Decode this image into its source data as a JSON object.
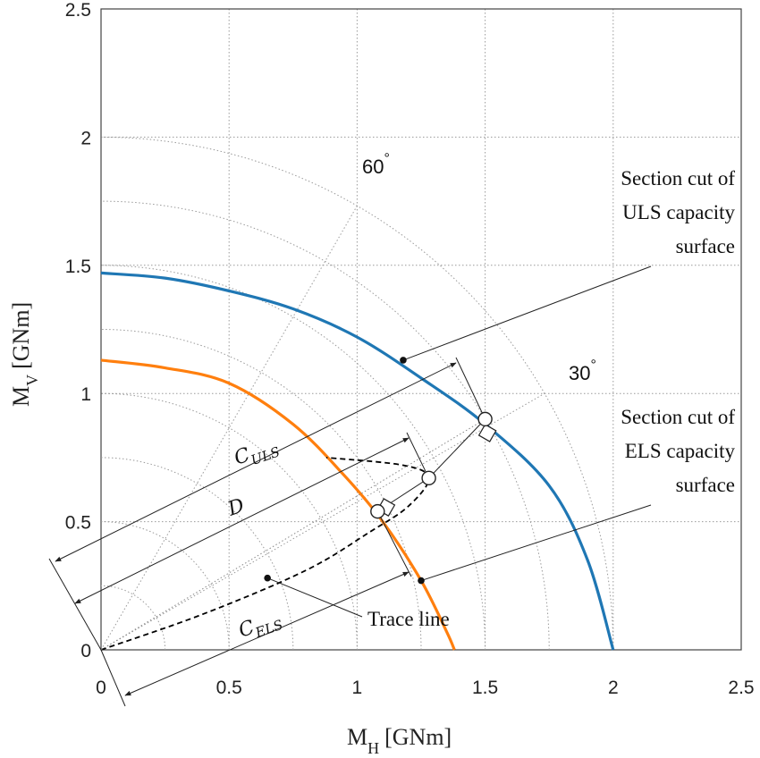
{
  "chart_data": {
    "type": "line",
    "xlabel": "M",
    "xlabel_sub": "H",
    "xlabel_unit": "[GNm]",
    "ylabel": "M",
    "ylabel_sub": "V",
    "ylabel_unit": "[GNm]",
    "xlim": [
      0,
      2.5
    ],
    "ylim": [
      0,
      2.5
    ],
    "xticks": [
      0,
      0.5,
      1,
      1.5,
      2,
      2.5
    ],
    "yticks": [
      0,
      0.5,
      1,
      1.5,
      2,
      2.5
    ],
    "xtick_labels": [
      "0",
      "0.5",
      "1",
      "1.5",
      "2",
      "2.5"
    ],
    "ytick_labels": [
      "0",
      "0.5",
      "1",
      "1.5",
      "2",
      "2.5"
    ],
    "grid": true,
    "polar_grid": {
      "radii": [
        0.25,
        0.5,
        0.75,
        1.0,
        1.25,
        1.5,
        1.75,
        2.0
      ],
      "angles_deg": [
        30,
        60
      ],
      "angle_labels": [
        {
          "text": "60",
          "deg": "°",
          "x": 1.1,
          "y": 1.88
        },
        {
          "text": "30",
          "deg": "°",
          "x": 1.82,
          "y": 1.03
        }
      ]
    },
    "series": [
      {
        "name": "ULS",
        "color": "#1f77b4",
        "x": [
          0,
          0.25,
          0.5,
          0.75,
          1.0,
          1.25,
          1.5,
          1.75,
          1.9,
          2.0
        ],
        "y": [
          1.47,
          1.45,
          1.4,
          1.33,
          1.22,
          1.06,
          0.88,
          0.64,
          0.35,
          0.0
        ]
      },
      {
        "name": "ELS",
        "color": "#ff7f0e",
        "x": [
          0,
          0.25,
          0.5,
          0.75,
          0.95,
          1.1,
          1.25,
          1.35,
          1.38
        ],
        "y": [
          1.13,
          1.1,
          1.04,
          0.88,
          0.68,
          0.5,
          0.27,
          0.07,
          0.0
        ]
      },
      {
        "name": "Trace line",
        "color": "#000000",
        "style": "dashed",
        "x": [
          0,
          0.4,
          0.8,
          1.05,
          1.2,
          1.28,
          1.18,
          0.88
        ],
        "y": [
          0,
          0.14,
          0.31,
          0.46,
          0.56,
          0.67,
          0.72,
          0.75
        ]
      }
    ],
    "open_points": [
      {
        "x": 1.5,
        "y": 0.9
      },
      {
        "x": 1.28,
        "y": 0.67
      },
      {
        "x": 1.08,
        "y": 0.54
      }
    ],
    "filled_points": [
      {
        "x": 1.18,
        "y": 1.13
      },
      {
        "x": 1.25,
        "y": 0.27
      },
      {
        "x": 0.65,
        "y": 0.28
      }
    ],
    "annotations": {
      "uls_lines": [
        "Section cut of",
        "ULS capacity",
        "surface"
      ],
      "els_lines": [
        "Section cut of",
        "ELS capacity",
        "surface"
      ],
      "trace_label": "Trace line",
      "c_uls": {
        "main": "C",
        "sub": "ULS"
      },
      "d_label": "D",
      "c_els": {
        "main": "C",
        "sub": "ELS"
      }
    }
  }
}
